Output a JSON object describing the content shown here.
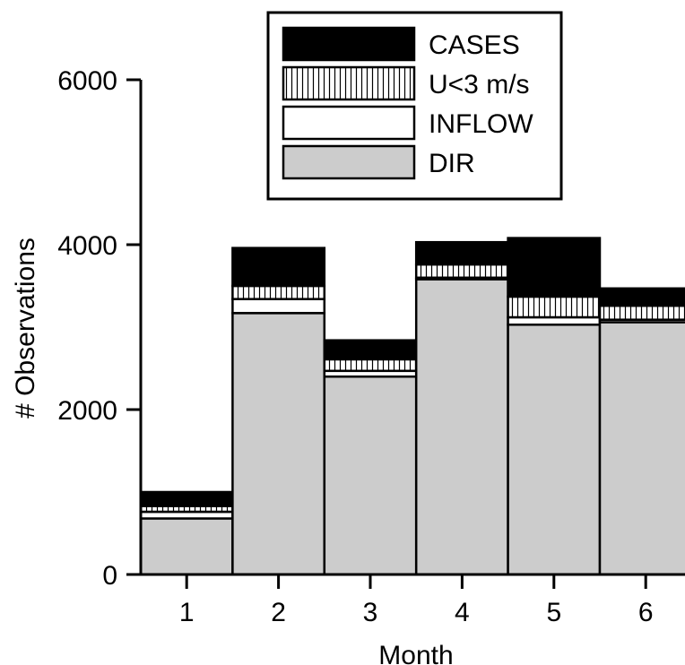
{
  "chart_data": {
    "type": "bar",
    "stacked": true,
    "xlabel": "Month",
    "ylabel": "# Observations",
    "categories": [
      "1",
      "2",
      "3",
      "4",
      "5",
      "6"
    ],
    "ylim": [
      0,
      6000
    ],
    "yticks": [
      0,
      2000,
      4000,
      6000
    ],
    "grid": false,
    "legend_position": "top-center",
    "series": [
      {
        "name": "DIR",
        "pattern": "solid",
        "color": "#cccccc",
        "values": [
          680,
          3170,
          2400,
          3580,
          3030,
          3060
        ]
      },
      {
        "name": "INFLOW",
        "pattern": "solid",
        "color": "#ffffff",
        "values": [
          80,
          170,
          70,
          20,
          90,
          30
        ]
      },
      {
        "name": "U<3 m/s",
        "pattern": "vertical-stripes",
        "color": "#ffffff",
        "values": [
          70,
          160,
          140,
          160,
          250,
          170
        ]
      },
      {
        "name": "CASES",
        "pattern": "solid",
        "color": "#000000",
        "values": [
          170,
          460,
          230,
          270,
          710,
          210
        ]
      }
    ],
    "legend_order": [
      "CASES",
      "U<3 m/s",
      "INFLOW",
      "DIR"
    ]
  }
}
